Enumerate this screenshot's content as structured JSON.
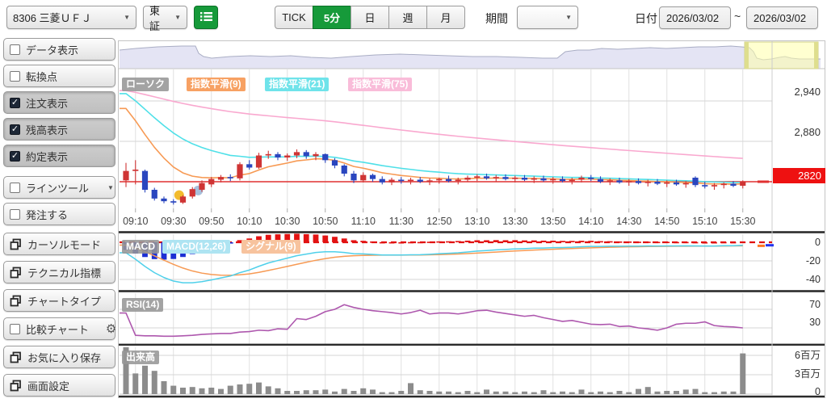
{
  "toolbar": {
    "stock_selector": {
      "value": "8306 三菱ＵＦＪ"
    },
    "market_selector": {
      "value": "東証"
    },
    "timeframes": [
      {
        "label": "TICK",
        "active": false,
        "name": "timeframe-tick"
      },
      {
        "label": "5分",
        "active": true,
        "name": "timeframe-5min"
      },
      {
        "label": "日",
        "active": false,
        "name": "timeframe-day"
      },
      {
        "label": "週",
        "active": false,
        "name": "timeframe-week"
      },
      {
        "label": "月",
        "active": false,
        "name": "timeframe-month"
      }
    ],
    "period_label": "期間",
    "period_value": "",
    "date_label": "日付",
    "date_from": "2026/03/02",
    "date_separator": "~",
    "date_to": "2026/03/02"
  },
  "sidebar": {
    "toggle_buttons": [
      {
        "label": "データ表示",
        "checked": false,
        "type": "checkbox",
        "name": "data-display"
      },
      {
        "label": "転換点",
        "checked": false,
        "type": "checkbox",
        "name": "turning-point"
      },
      {
        "label": "注文表示",
        "checked": true,
        "type": "checkbox",
        "name": "order-display"
      },
      {
        "label": "残高表示",
        "checked": true,
        "type": "checkbox",
        "name": "balance-display"
      },
      {
        "label": "約定表示",
        "checked": true,
        "type": "checkbox",
        "name": "execution-display"
      },
      {
        "label": "ラインツール",
        "checked": false,
        "type": "checkbox-dropdown",
        "name": "line-tool"
      },
      {
        "label": "発注する",
        "checked": false,
        "type": "checkbox",
        "name": "place-order"
      }
    ],
    "action_buttons": [
      {
        "label": "カーソルモード",
        "icon": "layers",
        "name": "cursor-mode"
      },
      {
        "label": "テクニカル指標",
        "icon": "layers",
        "name": "technical-indicator"
      },
      {
        "label": "チャートタイプ",
        "icon": "layers",
        "name": "chart-type"
      },
      {
        "label": "比較チャート",
        "icon": "checkbox",
        "gear": true,
        "name": "compare-chart"
      },
      {
        "label": "お気に入り保存",
        "icon": "layers",
        "name": "save-favorite"
      },
      {
        "label": "画面設定",
        "icon": "layers",
        "name": "screen-settings"
      }
    ]
  },
  "chart": {
    "legend_main": [
      {
        "label": "ローソク",
        "bg": "rgba(150,150,150,0.88)"
      },
      {
        "label": "指数平滑(9)",
        "bg": "#f7a163"
      },
      {
        "label": "指数平滑(21)",
        "bg": "#6fe3ea"
      },
      {
        "label": "指数平滑(75)",
        "bg": "#f9bcd9"
      }
    ],
    "legend_macd": [
      {
        "label": "MACD",
        "bg": "rgba(150,150,150,0.88)"
      },
      {
        "label": "MACD(12,26)",
        "bg": "#aee4f2"
      },
      {
        "label": "シグナル(9)",
        "bg": "#f7c39e"
      }
    ],
    "legend_rsi": {
      "label": "RSI(14)",
      "bg": "rgba(150,150,150,0.88)"
    },
    "legend_volume": {
      "label": "出来高",
      "bg": "rgba(150,150,150,0.88)"
    },
    "y_axis_main": [
      "2,940",
      "2,880"
    ],
    "price_tag": "2820",
    "y_axis_macd": [
      "0",
      "-20",
      "-40"
    ],
    "y_axis_rsi": [
      "70",
      "30"
    ],
    "y_axis_volume": [
      "6百万",
      "3百万",
      "0"
    ],
    "x_ticks": [
      "09:10",
      "09:30",
      "09:50",
      "10:10",
      "10:30",
      "10:50",
      "11:10",
      "11:30",
      "12:50",
      "13:10",
      "13:30",
      "13:50",
      "14:10",
      "14:30",
      "14:50",
      "15:10",
      "15:30"
    ]
  },
  "chart_data": {
    "type": "candlestick+indicators",
    "symbol": "8306 三菱ＵＦＪ",
    "interval": "5分",
    "price_line": 2820,
    "ylim_main": [
      2780,
      2980
    ],
    "candles_ohlc": [
      [
        2822,
        2848,
        2812,
        2836
      ],
      [
        2836,
        2852,
        2816,
        2838
      ],
      [
        2836,
        2838,
        2804,
        2808
      ],
      [
        2808,
        2811,
        2792,
        2795
      ],
      [
        2795,
        2798,
        2788,
        2791
      ],
      [
        2791,
        2794,
        2786,
        2789
      ],
      [
        2789,
        2800,
        2787,
        2798
      ],
      [
        2798,
        2812,
        2795,
        2809
      ],
      [
        2808,
        2822,
        2805,
        2818
      ],
      [
        2816,
        2827,
        2812,
        2824
      ],
      [
        2823,
        2830,
        2819,
        2827
      ],
      [
        2827,
        2831,
        2821,
        2825
      ],
      [
        2825,
        2849,
        2822,
        2846
      ],
      [
        2846,
        2852,
        2838,
        2841
      ],
      [
        2841,
        2863,
        2839,
        2859
      ],
      [
        2859,
        2866,
        2854,
        2861
      ],
      [
        2861,
        2864,
        2852,
        2856
      ],
      [
        2856,
        2862,
        2851,
        2859
      ],
      [
        2859,
        2868,
        2855,
        2864
      ],
      [
        2864,
        2867,
        2854,
        2858
      ],
      [
        2858,
        2864,
        2852,
        2861
      ],
      [
        2861,
        2862,
        2848,
        2852
      ],
      [
        2852,
        2855,
        2840,
        2844
      ],
      [
        2844,
        2846,
        2828,
        2832
      ],
      [
        2832,
        2836,
        2818,
        2822
      ],
      [
        2822,
        2834,
        2819,
        2830
      ],
      [
        2830,
        2832,
        2820,
        2824
      ],
      [
        2824,
        2828,
        2816,
        2819
      ],
      [
        2819,
        2826,
        2815,
        2823
      ],
      [
        2823,
        2827,
        2817,
        2821
      ],
      [
        2821,
        2826,
        2816,
        2823
      ],
      [
        2823,
        2827,
        2818,
        2820
      ],
      [
        2820,
        2825,
        2815,
        2822
      ],
      [
        2822,
        2826,
        2817,
        2824
      ],
      [
        2824,
        2829,
        2819,
        2821
      ],
      [
        2821,
        2826,
        2816,
        2823
      ],
      [
        2823,
        2829,
        2820,
        2826
      ],
      [
        2826,
        2831,
        2821,
        2828
      ],
      [
        2828,
        2832,
        2823,
        2825
      ],
      [
        2825,
        2830,
        2820,
        2827
      ],
      [
        2827,
        2831,
        2822,
        2824
      ],
      [
        2824,
        2829,
        2819,
        2826
      ],
      [
        2826,
        2830,
        2821,
        2823
      ],
      [
        2823,
        2828,
        2818,
        2825
      ],
      [
        2825,
        2829,
        2820,
        2822
      ],
      [
        2822,
        2827,
        2817,
        2824
      ],
      [
        2824,
        2828,
        2819,
        2821
      ],
      [
        2821,
        2826,
        2816,
        2823
      ],
      [
        2823,
        2829,
        2819,
        2826
      ],
      [
        2826,
        2830,
        2821,
        2824
      ],
      [
        2824,
        2828,
        2818,
        2820
      ],
      [
        2820,
        2825,
        2815,
        2822
      ],
      [
        2822,
        2826,
        2817,
        2819
      ],
      [
        2819,
        2824,
        2814,
        2821
      ],
      [
        2821,
        2825,
        2816,
        2818
      ],
      [
        2818,
        2823,
        2813,
        2820
      ],
      [
        2820,
        2824,
        2815,
        2817
      ],
      [
        2817,
        2822,
        2812,
        2819
      ],
      [
        2819,
        2823,
        2814,
        2816
      ],
      [
        2816,
        2821,
        2811,
        2818
      ],
      [
        2826,
        2828,
        2812,
        2815
      ],
      [
        2815,
        2820,
        2810,
        2813
      ],
      [
        2813,
        2818,
        2808,
        2815
      ],
      [
        2815,
        2819,
        2810,
        2817
      ],
      [
        2817,
        2821,
        2812,
        2814
      ],
      [
        2814,
        2822,
        2810,
        2820
      ]
    ],
    "tick_every": 4,
    "tick_start_index": 1,
    "ema": {
      "ema9": {
        "period": 9,
        "k": 0.2,
        "seed": 2952
      },
      "ema21": {
        "period": 21,
        "k": 0.095,
        "seed": 2963
      },
      "ema75": {
        "period": 75,
        "k": 0.022,
        "seed": 2958
      }
    },
    "macd": {
      "fast_k": 0.154,
      "fast_seed": 2954,
      "slow_k": 0.074,
      "slow_seed": 2956,
      "signal_k": 0.2,
      "signal_seed": -1,
      "ylim": [
        -50,
        10
      ]
    },
    "rsi": [
      62,
      14,
      13,
      13,
      12,
      12,
      13,
      14,
      16,
      17,
      18,
      18,
      21,
      22,
      25,
      24,
      28,
      27,
      50,
      48,
      55,
      65,
      70,
      80,
      74,
      70,
      67,
      65,
      63,
      60,
      63,
      68,
      60,
      62,
      62,
      60,
      63,
      67,
      68,
      64,
      61,
      58,
      55,
      57,
      52,
      48,
      44,
      46,
      42,
      38,
      37,
      38,
      33,
      34,
      30,
      28,
      25,
      30,
      38,
      40,
      40,
      43,
      35,
      33,
      32,
      30
    ],
    "volume_millions": [
      7.5,
      3.2,
      4.4,
      3.6,
      2.0,
      1.3,
      1.0,
      1.1,
      0.9,
      1.0,
      0.8,
      1.3,
      1.5,
      1.6,
      1.8,
      1.2,
      0.9,
      0.5,
      0.5,
      0.6,
      0.6,
      0.7,
      0.4,
      0.8,
      0.5,
      0.9,
      0.7,
      0.3,
      0.3,
      0.5,
      1.7,
      0.6,
      0.5,
      0.4,
      0.4,
      0.3,
      0.5,
      0.3,
      0.7,
      0.4,
      0.4,
      0.3,
      0.4,
      0.3,
      0.6,
      0.3,
      0.4,
      0.3,
      0.7,
      0.3,
      0.4,
      0.3,
      0.5,
      0.3,
      0.8,
      1.1,
      0.4,
      0.5,
      0.5,
      0.7,
      0.8,
      0.3,
      0.3,
      0.4,
      0.4,
      6.3
    ],
    "markers": [
      {
        "index": 5.6,
        "price": 2800,
        "color": "#f2bb2e",
        "name": "order-marker-yellow"
      },
      {
        "index": 7.6,
        "price": 2807,
        "color": "#a8c0dc",
        "name": "order-marker-blue"
      }
    ],
    "navigator": {
      "points": [
        [
          148,
          62
        ],
        [
          168,
          60
        ],
        [
          195,
          58
        ],
        [
          225,
          57
        ],
        [
          242,
          57
        ],
        [
          246,
          66
        ],
        [
          252,
          70
        ],
        [
          262,
          72
        ],
        [
          285,
          70
        ],
        [
          310,
          69
        ],
        [
          335,
          70
        ],
        [
          360,
          69
        ],
        [
          385,
          71
        ],
        [
          410,
          72
        ],
        [
          435,
          70
        ],
        [
          465,
          68
        ],
        [
          495,
          67
        ],
        [
          525,
          68
        ],
        [
          555,
          69
        ],
        [
          585,
          70
        ],
        [
          615,
          70
        ],
        [
          645,
          71
        ],
        [
          672,
          72
        ],
        [
          690,
          72
        ],
        [
          700,
          64
        ],
        [
          715,
          62
        ],
        [
          730,
          62
        ],
        [
          745,
          60
        ],
        [
          765,
          61
        ],
        [
          785,
          60
        ],
        [
          805,
          59
        ],
        [
          825,
          60
        ],
        [
          845,
          59
        ],
        [
          865,
          58
        ],
        [
          885,
          58
        ],
        [
          905,
          57
        ],
        [
          918,
          58
        ],
        [
          928,
          59
        ],
        [
          933,
          64
        ],
        [
          937,
          72
        ],
        [
          945,
          74
        ],
        [
          955,
          73
        ],
        [
          965,
          71
        ],
        [
          972,
          70
        ],
        [
          980,
          72
        ],
        [
          990,
          73
        ],
        [
          1002,
          73
        ],
        [
          1016,
          73
        ]
      ],
      "selection_x": [
        922,
        1013
      ]
    }
  },
  "colors": {
    "candle_up": "#cf3434",
    "candle_down": "#2a46bf",
    "ema9": "#f79a54",
    "ema21": "#4fe0e8",
    "ema75": "#f9a8cf",
    "macd_line": "#4fd0ea",
    "macd_signal": "#f79a54",
    "macd_hist_pos": "#e31212",
    "macd_hist_neg": "#1c2fd4",
    "macd_zero_line": "#e01010",
    "rsi_line": "#ae58ae",
    "volume_bar": "#8c8c8c",
    "price_line": "#e03030",
    "price_tag_bg": "#ee1111",
    "accent_green": "#169a3a",
    "navigator_fill": "#e4e4f4",
    "navigator_stroke": "#a9adc4",
    "selection_fill": "rgba(255,255,170,0.55)",
    "selection_handle": "#dede8e",
    "grid": "#e0e0e0",
    "grid_h": "#d6d6d6",
    "separator": "#2b2b2b",
    "axis_text": "#333333"
  }
}
